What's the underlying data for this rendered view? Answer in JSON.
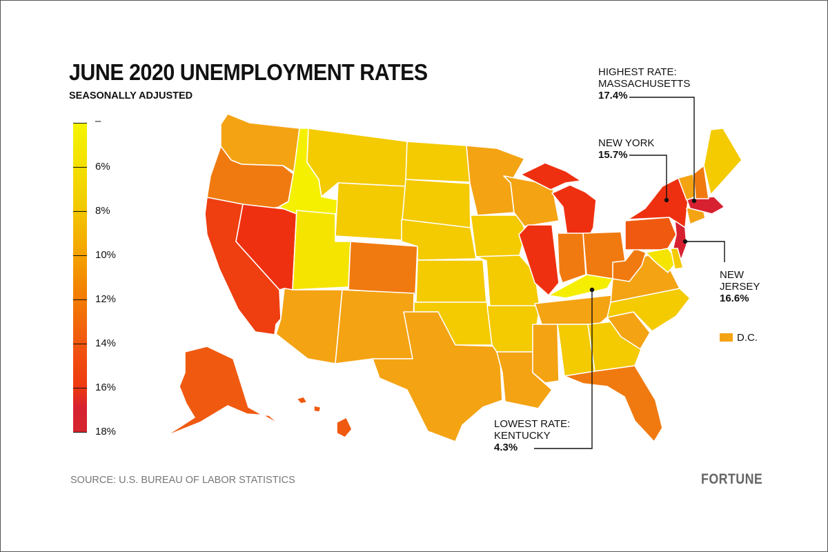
{
  "title": "JUNE 2020 UNEMPLOYMENT RATES",
  "subtitle": "SEASONALLY ADJUSTED",
  "legend": {
    "ticks": [
      {
        "label": "–",
        "value": 4
      },
      {
        "label": "6%",
        "value": 6
      },
      {
        "label": "8%",
        "value": 8
      },
      {
        "label": "10%",
        "value": 10
      },
      {
        "label": "12%",
        "value": 12
      },
      {
        "label": "14%",
        "value": 14
      },
      {
        "label": "16%",
        "value": 16
      },
      {
        "label": "18%",
        "value": 18
      }
    ],
    "colors": [
      "#f5f500",
      "#f2ce00",
      "#f4a900",
      "#f38000",
      "#f15a0f",
      "#ee3a10",
      "#d72130"
    ]
  },
  "callouts": {
    "massachusetts": {
      "name": "HIGHEST RATE:",
      "name2": "MASSACHUSETTS",
      "value": "17.4%"
    },
    "new_york": {
      "name": "NEW YORK",
      "value": "15.7%"
    },
    "new_jersey": {
      "name": "NEW",
      "name2": "JERSEY",
      "value": "16.6%"
    },
    "kentucky": {
      "name": "LOWEST RATE:",
      "name2": "KENTUCKY",
      "value": "4.3%"
    }
  },
  "dc_label": "D.C.",
  "source": "SOURCE: U.S. BUREAU OF LABOR STATISTICS",
  "brand": "FORTUNE",
  "states": [
    {
      "id": "WA",
      "color": "#f4a313"
    },
    {
      "id": "OR",
      "color": "#f07a10"
    },
    {
      "id": "CA",
      "color": "#ef3e10"
    },
    {
      "id": "NV",
      "color": "#ef3010"
    },
    {
      "id": "ID",
      "color": "#f5f000"
    },
    {
      "id": "UT",
      "color": "#f5e400"
    },
    {
      "id": "AZ",
      "color": "#f4a313"
    },
    {
      "id": "MT",
      "color": "#f4ca00"
    },
    {
      "id": "WY",
      "color": "#f4ca00"
    },
    {
      "id": "CO",
      "color": "#f07a10"
    },
    {
      "id": "NM",
      "color": "#f4a313"
    },
    {
      "id": "ND",
      "color": "#f4ca00"
    },
    {
      "id": "SD",
      "color": "#f4ca00"
    },
    {
      "id": "NE",
      "color": "#f4ca00"
    },
    {
      "id": "KS",
      "color": "#f4ca00"
    },
    {
      "id": "OK",
      "color": "#f4ca00"
    },
    {
      "id": "TX",
      "color": "#f4a313"
    },
    {
      "id": "MN",
      "color": "#f4a313"
    },
    {
      "id": "IA",
      "color": "#f4ca00"
    },
    {
      "id": "MO",
      "color": "#f4ca00"
    },
    {
      "id": "AR",
      "color": "#f4ca00"
    },
    {
      "id": "LA",
      "color": "#f4a313"
    },
    {
      "id": "WI",
      "color": "#f4a313"
    },
    {
      "id": "IL",
      "color": "#ef3010"
    },
    {
      "id": "MI",
      "color": "#ef3010"
    },
    {
      "id": "IN",
      "color": "#f07a10"
    },
    {
      "id": "OH",
      "color": "#f07a10"
    },
    {
      "id": "KY",
      "color": "#f5ee00"
    },
    {
      "id": "TN",
      "color": "#f4a313"
    },
    {
      "id": "MS",
      "color": "#f4a313"
    },
    {
      "id": "AL",
      "color": "#f4ca00"
    },
    {
      "id": "GA",
      "color": "#f4ca00"
    },
    {
      "id": "FL",
      "color": "#f07a10"
    },
    {
      "id": "SC",
      "color": "#f4a313"
    },
    {
      "id": "NC",
      "color": "#f4ca00"
    },
    {
      "id": "VA",
      "color": "#f4a313"
    },
    {
      "id": "WV",
      "color": "#f07a10"
    },
    {
      "id": "PA",
      "color": "#f05a10"
    },
    {
      "id": "NY",
      "color": "#ef3010"
    },
    {
      "id": "NJ",
      "color": "#d72130"
    },
    {
      "id": "MD",
      "color": "#f5e400"
    },
    {
      "id": "DE",
      "color": "#f4ca00"
    },
    {
      "id": "CT",
      "color": "#f4a313"
    },
    {
      "id": "MA",
      "color": "#d72130"
    },
    {
      "id": "VT",
      "color": "#f4a313"
    },
    {
      "id": "NH",
      "color": "#f07a10"
    },
    {
      "id": "ME",
      "color": "#f4ca00"
    },
    {
      "id": "AK",
      "color": "#f05a10"
    },
    {
      "id": "HI",
      "color": "#f05a10"
    }
  ]
}
